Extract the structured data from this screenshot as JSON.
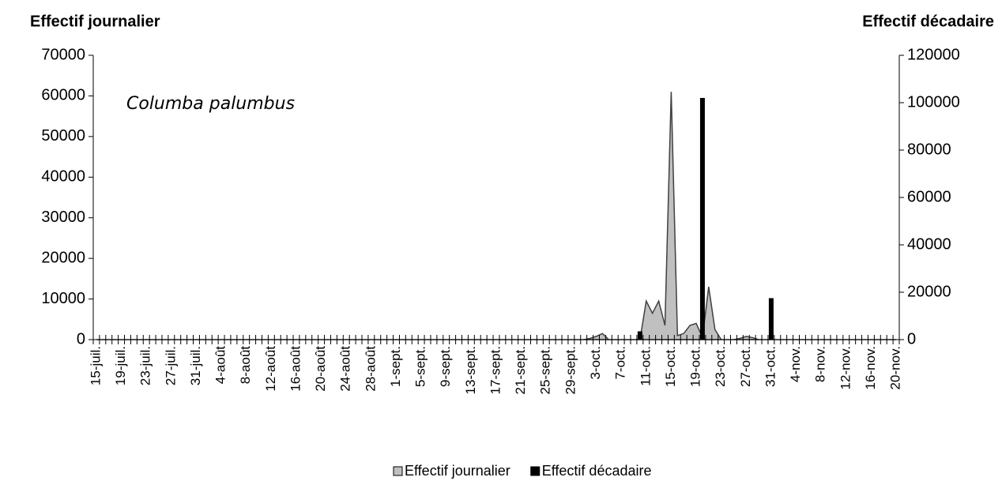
{
  "chart_data": {
    "type": "area-bar",
    "y_title": "Effectif journalier",
    "y2_title": "Effectif décadaire",
    "annotation": "Columba palumbus",
    "categories": [
      "15-juil.",
      null,
      null,
      null,
      "19-juil.",
      null,
      null,
      null,
      "23-juil.",
      null,
      null,
      null,
      "27-juil.",
      null,
      null,
      null,
      "31-juil.",
      null,
      null,
      null,
      "4-août",
      null,
      null,
      null,
      "8-août",
      null,
      null,
      null,
      "12-août",
      null,
      null,
      null,
      "16-août",
      null,
      null,
      null,
      "20-août",
      null,
      null,
      null,
      "24-août",
      null,
      null,
      null,
      "28-août",
      null,
      null,
      null,
      "1-sept.",
      null,
      null,
      null,
      "5-sept.",
      null,
      null,
      null,
      "9-sept.",
      null,
      null,
      null,
      "13-sept.",
      null,
      null,
      null,
      "17-sept.",
      null,
      null,
      null,
      "21-sept.",
      null,
      null,
      null,
      "25-sept.",
      null,
      null,
      null,
      "29-sept.",
      null,
      null,
      null,
      "3-oct.",
      null,
      null,
      null,
      "7-oct.",
      null,
      null,
      null,
      "11-oct.",
      null,
      null,
      null,
      "15-oct.",
      null,
      null,
      null,
      "19-oct.",
      null,
      null,
      null,
      "23-oct.",
      null,
      null,
      null,
      "27-oct.",
      null,
      null,
      null,
      "31-oct.",
      null,
      null,
      null,
      "4-nov.",
      null,
      null,
      null,
      "8-nov.",
      null,
      null,
      null,
      "12-nov.",
      null,
      null,
      null,
      "16-nov.",
      null,
      null,
      null,
      "20-nov."
    ],
    "series": [
      {
        "name": "Effectif journalier",
        "kind": "area",
        "color": "#c0c0c0",
        "values": [
          0,
          0,
          0,
          0,
          0,
          0,
          0,
          0,
          0,
          0,
          0,
          0,
          0,
          0,
          0,
          0,
          0,
          0,
          0,
          0,
          0,
          0,
          0,
          0,
          0,
          0,
          0,
          0,
          0,
          0,
          0,
          0,
          0,
          0,
          0,
          0,
          0,
          0,
          0,
          0,
          0,
          0,
          0,
          0,
          0,
          0,
          0,
          0,
          0,
          0,
          0,
          0,
          0,
          0,
          0,
          0,
          0,
          0,
          0,
          0,
          0,
          0,
          0,
          0,
          0,
          0,
          0,
          0,
          0,
          0,
          0,
          0,
          0,
          0,
          0,
          0,
          0,
          0,
          0,
          300,
          800,
          1500,
          0,
          0,
          0,
          0,
          0,
          0,
          9500,
          6500,
          9500,
          3500,
          61000,
          1000,
          1500,
          3500,
          4000,
          500,
          13000,
          2500,
          0,
          0,
          0,
          300,
          800,
          500,
          0,
          0,
          0,
          0,
          0,
          0,
          0,
          0,
          0,
          0,
          0,
          0,
          0,
          0,
          0,
          0,
          0,
          0,
          0,
          0,
          0,
          0,
          0
        ]
      },
      {
        "name": "Effectif décadaire",
        "kind": "bar",
        "axis": "y2",
        "color": "#000000",
        "values": [
          null,
          null,
          null,
          null,
          null,
          null,
          null,
          null,
          null,
          null,
          null,
          null,
          null,
          null,
          null,
          null,
          null,
          null,
          null,
          null,
          null,
          null,
          null,
          null,
          null,
          null,
          null,
          null,
          null,
          null,
          null,
          null,
          null,
          null,
          null,
          null,
          null,
          null,
          null,
          null,
          null,
          null,
          null,
          null,
          null,
          null,
          null,
          null,
          null,
          null,
          null,
          null,
          null,
          null,
          null,
          null,
          null,
          null,
          null,
          null,
          null,
          null,
          null,
          null,
          null,
          null,
          null,
          null,
          null,
          null,
          null,
          null,
          null,
          null,
          null,
          null,
          null,
          null,
          null,
          null,
          null,
          null,
          null,
          null,
          null,
          null,
          null,
          3500,
          null,
          null,
          null,
          null,
          null,
          null,
          null,
          null,
          null,
          102000,
          null,
          null,
          null,
          null,
          null,
          null,
          null,
          null,
          null,
          null,
          17500,
          null,
          null,
          null,
          null,
          null,
          null,
          null,
          null,
          null,
          null,
          null,
          null,
          null,
          null,
          null,
          null,
          null,
          null,
          null,
          null
        ]
      }
    ],
    "ylim": [
      0,
      70000
    ],
    "yticks": [
      0,
      10000,
      20000,
      30000,
      40000,
      50000,
      60000,
      70000
    ],
    "y2lim": [
      0,
      120000
    ],
    "y2ticks": [
      0,
      20000,
      40000,
      60000,
      80000,
      100000,
      120000
    ],
    "grid": false,
    "legend": "bottom"
  }
}
